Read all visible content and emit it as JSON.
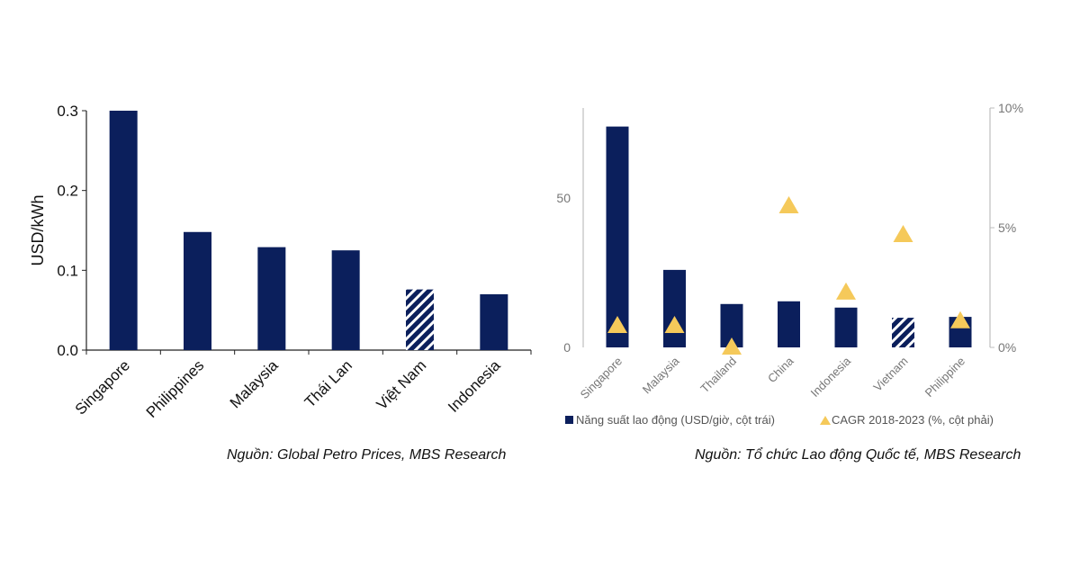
{
  "colors": {
    "bar": "#0b1f5c",
    "triangle": "#f5c95a",
    "axis_dark": "#222222",
    "axis_light": "#bdbdbd",
    "tick_text_light": "#777777"
  },
  "chart_data": [
    {
      "type": "bar",
      "title": "",
      "xlabel": "",
      "ylabel": "USD/kWh",
      "ylim": [
        0,
        0.3
      ],
      "yticks": [
        "0.0",
        "0.1",
        "0.2",
        "0.3"
      ],
      "ytick_values": [
        0,
        0.1,
        0.2,
        0.3
      ],
      "categories": [
        "Singapore",
        "Philippines",
        "Malaysia",
        "Thái Lan",
        "Việt Nam",
        "Indonesia"
      ],
      "values": [
        0.3,
        0.148,
        0.129,
        0.125,
        0.076,
        0.07
      ],
      "hatched": [
        false,
        false,
        false,
        false,
        true,
        false
      ],
      "source": "Nguồn: Global Petro Prices, MBS Research"
    },
    {
      "type": "bar",
      "title": "",
      "categories": [
        "Singapore",
        "Malaysia",
        "Thailand",
        "China",
        "Indonesia",
        "Vietnam",
        "Philippine"
      ],
      "ylim_left": [
        0,
        80
      ],
      "ylim_right": [
        0,
        10
      ],
      "yticks_left": [
        "0",
        "50"
      ],
      "ytick_values_left": [
        0,
        50
      ],
      "yticks_right": [
        "0%",
        "5%",
        "10%"
      ],
      "ytick_values_right": [
        0,
        5,
        10
      ],
      "series": [
        {
          "name": "Năng suất lao động (USD/giờ, cột trái)",
          "type": "bar",
          "axis": "left",
          "values": [
            73.8,
            25.9,
            14.5,
            15.4,
            13.3,
            9.9,
            10.2
          ],
          "hatched": [
            false,
            false,
            false,
            false,
            false,
            true,
            false
          ]
        },
        {
          "name": "CAGR 2018-2023 (%, cột phải)",
          "type": "scatter",
          "marker": "triangle",
          "axis": "right",
          "values": [
            0.9,
            0.9,
            0.0,
            5.9,
            2.3,
            4.7,
            1.1
          ]
        }
      ],
      "legend_position": "bottom",
      "source": "Nguồn: Tổ chức Lao động Quốc tế, MBS Research"
    }
  ]
}
